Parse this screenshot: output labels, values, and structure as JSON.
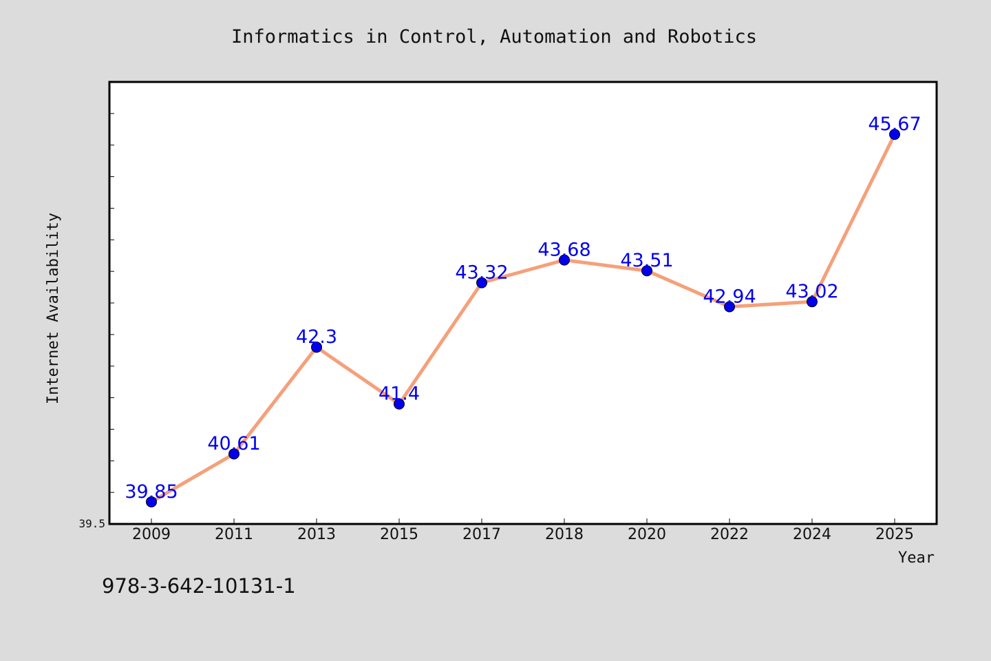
{
  "chart_data": {
    "type": "line",
    "title": "Informatics in Control, Automation and Robotics",
    "xlabel": "Year",
    "ylabel": "Internet Availability",
    "categories": [
      "2009",
      "2011",
      "2013",
      "2015",
      "2017",
      "2018",
      "2020",
      "2022",
      "2024",
      "2025"
    ],
    "series": [
      {
        "values": [
          39.85,
          40.61,
          42.3,
          41.4,
          43.32,
          43.68,
          43.51,
          42.94,
          43.02,
          45.67
        ],
        "labels": [
          "39.85",
          "40.61",
          "42.3",
          "41.4",
          "43.32",
          "43.68",
          "43.51",
          "42.94",
          "43.02",
          "45.67"
        ],
        "line_color": "#f5a07a",
        "marker_color": "#0000ee",
        "label_color": "#0000ee"
      }
    ],
    "ylim": [
      39.5,
      46.5
    ],
    "y_tick_labels": [
      {
        "value": 39.5,
        "label": "39.5"
      }
    ],
    "y_minor_step": 0.5,
    "grid": false,
    "legend": "none"
  },
  "footnote": "978-3-642-10131-1",
  "colors": {
    "background": "#dcdcdc",
    "plot_background": "#ffffff",
    "axis": "#000000"
  }
}
